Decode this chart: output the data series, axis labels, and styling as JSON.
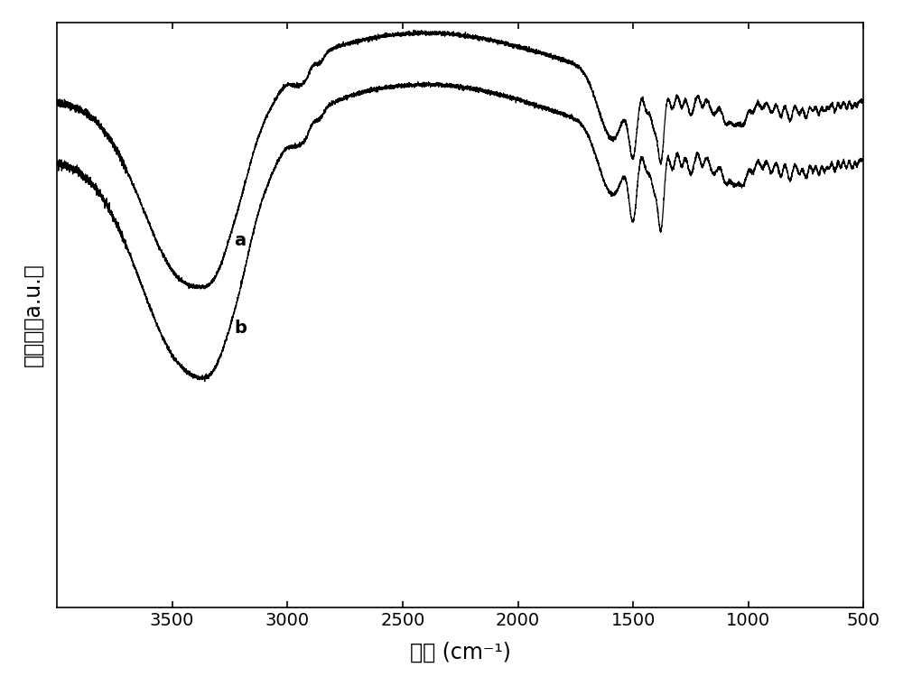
{
  "xlabel": "波长 (cm⁻¹)",
  "ylabel": "透射度（a.u.）",
  "label_a": "a",
  "label_b": "b",
  "line_color": "#000000",
  "background_color": "#ffffff",
  "tick_fontsize": 14,
  "label_fontsize": 17,
  "xticks": [
    500,
    1000,
    1500,
    2000,
    2500,
    3000,
    3500
  ],
  "figsize": [
    10.0,
    7.6
  ],
  "dpi": 100
}
